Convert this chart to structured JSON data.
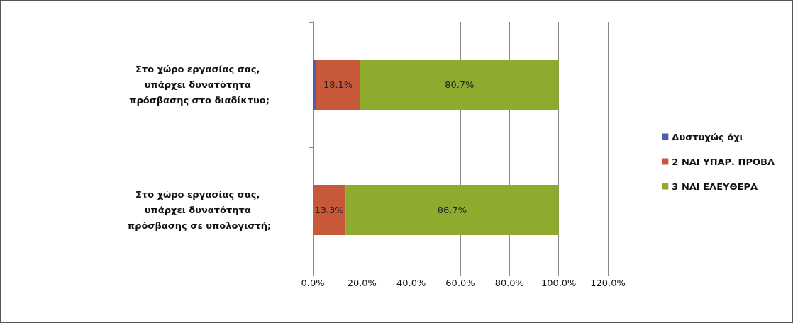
{
  "chart_data": {
    "type": "bar",
    "orientation": "horizontal",
    "stacked": true,
    "categories": [
      "Στο χώρο εργασίας σας, υπάρχει δυνατότητα πρόσβασης στο διαδίκτυο;",
      "Στο χώρο εργασίας σας, υπάρχει δυνατότητα πρόσβασης σε υπολογιστή;"
    ],
    "series": [
      {
        "name": "Δυστυχώς όχι",
        "color": "#4a5fb0",
        "values": [
          1.2,
          0
        ],
        "value_labels": [
          null,
          null
        ]
      },
      {
        "name": "2 ΝΑΙ ΥΠΑΡ. ΠΡΟΒΛ",
        "color": "#c8583a",
        "values": [
          18.1,
          13.3
        ],
        "value_labels": [
          "18.1%",
          "13.3%"
        ]
      },
      {
        "name": "3 ΝΑΙ ΕΛΕΥΘΕΡΑ",
        "color": "#8fab2d",
        "values": [
          80.7,
          86.7
        ],
        "value_labels": [
          "80.7%",
          "86.7%"
        ]
      }
    ],
    "xlim": [
      0,
      120
    ],
    "xticks": [
      {
        "value": 0,
        "label": "0.0%"
      },
      {
        "value": 20,
        "label": "20.0%"
      },
      {
        "value": 40,
        "label": "40.0%"
      },
      {
        "value": 60,
        "label": "60.0%"
      },
      {
        "value": 80,
        "label": "80.0%"
      },
      {
        "value": 100,
        "label": "100.0%"
      },
      {
        "value": 120,
        "label": "120.0%"
      }
    ],
    "grid": "x",
    "legend": "right"
  }
}
